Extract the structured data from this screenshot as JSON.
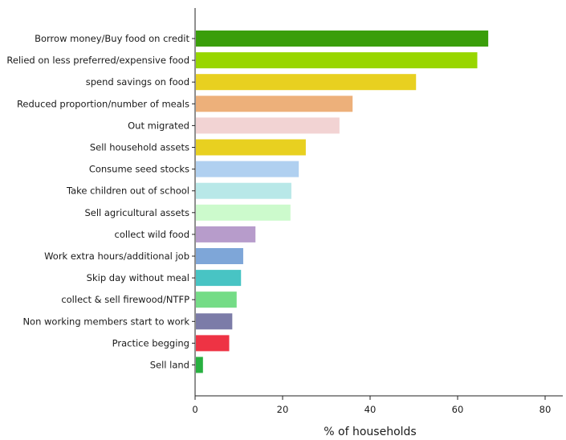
{
  "chart_data": {
    "type": "bar",
    "orientation": "horizontal",
    "title": "",
    "xlabel": "% of households",
    "ylabel": "",
    "xlim": [
      0,
      80
    ],
    "x_ticks": [
      0,
      20,
      40,
      60,
      80
    ],
    "grid": false,
    "legend": "none",
    "categories": [
      "Borrow money/Buy food on credit",
      "Relied on less preferred/expensive food",
      "spend savings on food",
      "Reduced proportion/number of meals",
      "Out migrated",
      "Sell household assets",
      "Consume seed stocks",
      "Take children out of school",
      "Sell agricultural assets",
      "collect wild food",
      "Work extra hours/additional job",
      "Skip day without meal",
      "collect & sell firewood/NTFP",
      "Non working members start to work",
      "Practice begging",
      "Sell land"
    ],
    "values": [
      67,
      64.5,
      50.5,
      36,
      33,
      25.3,
      23.7,
      22,
      21.8,
      13.8,
      11,
      10.5,
      9.5,
      8.5,
      7.8,
      1.8
    ],
    "colors": [
      "#3a9e0a",
      "#98d600",
      "#e8d020",
      "#edb07a",
      "#f2d3d3",
      "#e8d020",
      "#b0d0f0",
      "#b8e8e8",
      "#ccfacc",
      "#b79ccb",
      "#7ea6d8",
      "#48c4c4",
      "#74dc86",
      "#7c7ca8",
      "#ee3344",
      "#28b040"
    ]
  }
}
